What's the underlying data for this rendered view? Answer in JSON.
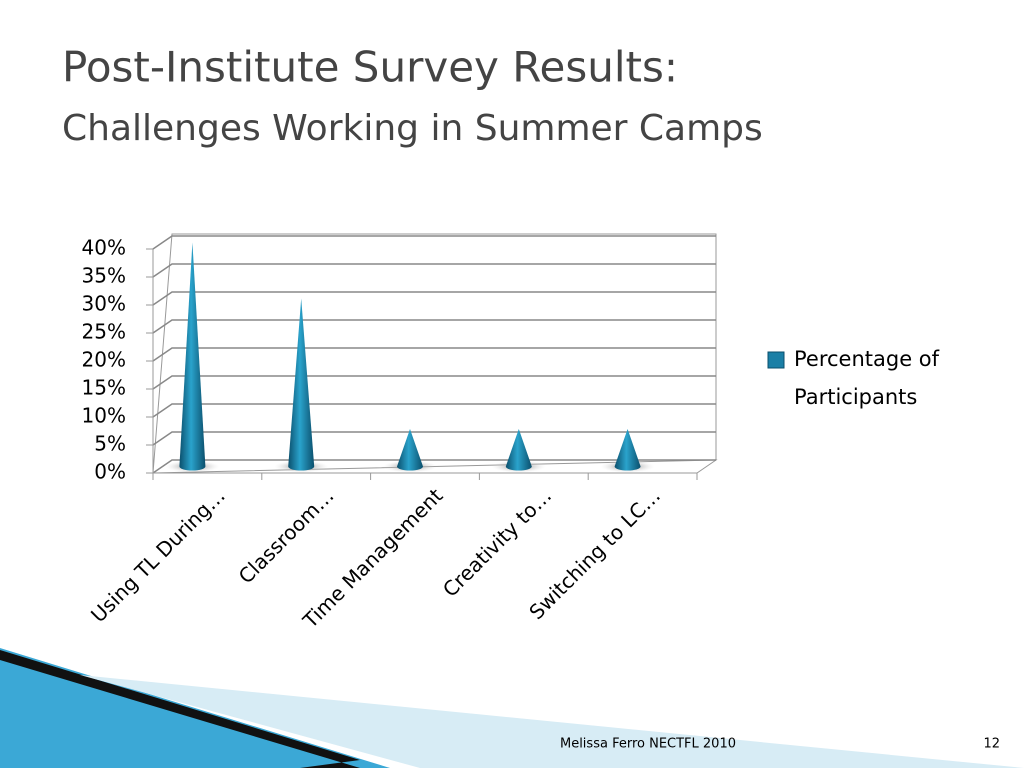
{
  "title": "Post-Institute Survey Results:",
  "subtitle": "Challenges Working in Summer Camps",
  "footer": {
    "presenter": "Melissa Ferro NECTFL 2010",
    "page": "12"
  },
  "chart_data": {
    "type": "cone",
    "categories": [
      "Using TL During…",
      "Classroom…",
      "Time Management",
      "Creativity to…",
      "Switching to LC…"
    ],
    "series": [
      {
        "name": "Percentage of Participants",
        "color": "#1a7fa6",
        "values": [
          40,
          30,
          6.7,
          6.7,
          6.7
        ]
      }
    ],
    "ylim": [
      0,
      40
    ],
    "yticks": [
      {
        "value": 0,
        "label": "0%"
      },
      {
        "value": 5,
        "label": "5%"
      },
      {
        "value": 10,
        "label": "10%"
      },
      {
        "value": 15,
        "label": "15%"
      },
      {
        "value": 20,
        "label": "20%"
      },
      {
        "value": 25,
        "label": "25%"
      },
      {
        "value": 30,
        "label": "30%"
      },
      {
        "value": 35,
        "label": "35%"
      },
      {
        "value": 40,
        "label": "40%"
      }
    ],
    "grid": true,
    "legend": "right"
  }
}
